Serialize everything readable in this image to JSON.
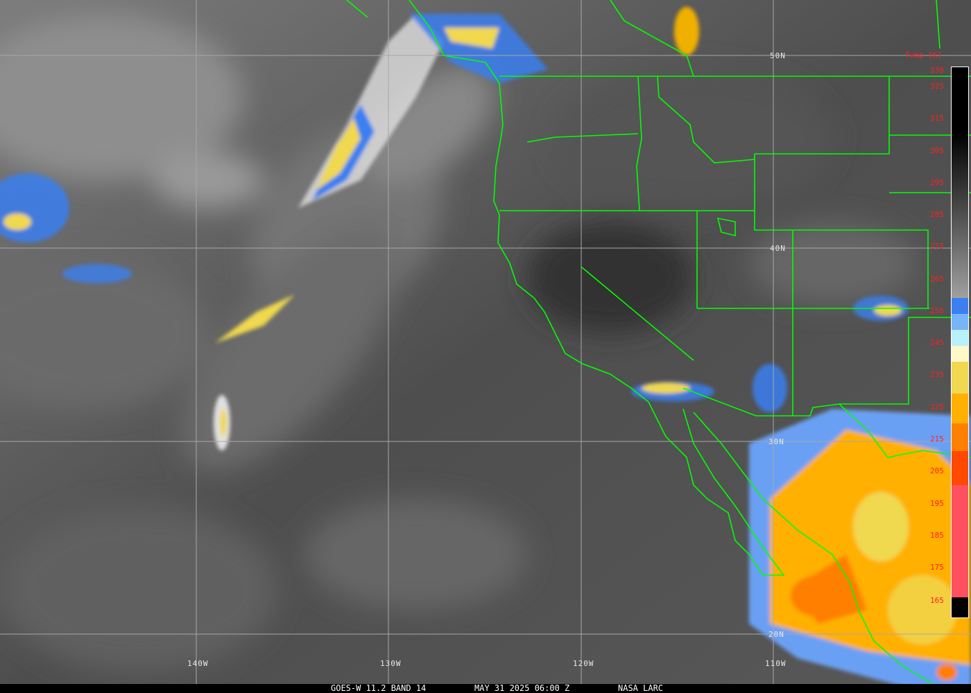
{
  "caption": {
    "product": "GOES-W 11.2 BAND 14",
    "datetime": "MAY 31 2025 06:00 Z",
    "source": "NASA LARC"
  },
  "latitude_labels": [
    "50N",
    "40N",
    "30N",
    "20N"
  ],
  "longitude_labels": [
    "140W",
    "130W",
    "120W",
    "110W"
  ],
  "colorbar": {
    "title": "Temp [K]",
    "ticks": [
      "330",
      "325",
      "315",
      "305",
      "295",
      "285",
      "275",
      "265",
      "255",
      "245",
      "235",
      "225",
      "215",
      "205",
      "195",
      "185",
      "175",
      "165"
    ],
    "colors": [
      "#000000",
      "#a0a0a0",
      "#3b7ff0",
      "#78b4f8",
      "#b8f0fc",
      "#fff8c8",
      "#f0d850",
      "#ffb000",
      "#ff8000",
      "#ff4800",
      "#ff5060"
    ]
  },
  "boundary_color": "#00ff00"
}
